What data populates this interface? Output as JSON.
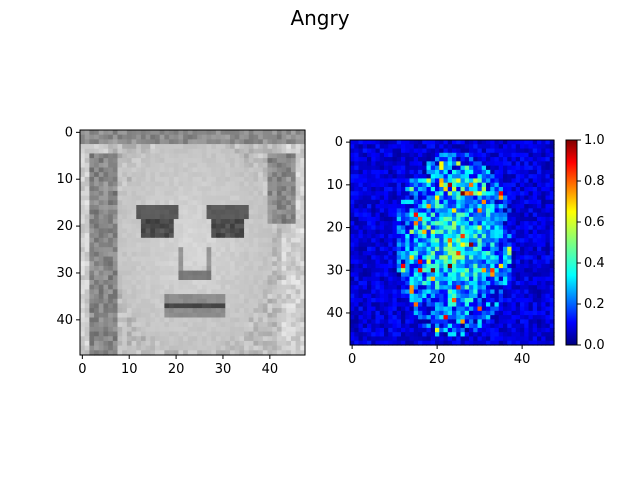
{
  "figure": {
    "title": "Angry",
    "background": "#ffffff"
  },
  "chart_data": [
    {
      "type": "heatmap",
      "name": "face-image",
      "description_visible": "",
      "colormap": "gray",
      "shape": [
        48,
        48
      ],
      "xlim": [
        -0.5,
        47.5
      ],
      "ylim": [
        47.5,
        -0.5
      ],
      "xticks": [
        0,
        10,
        20,
        30,
        40
      ],
      "yticks": [
        0,
        10,
        20,
        30,
        40
      ],
      "xtick_labels": [
        "0",
        "10",
        "20",
        "30",
        "40"
      ],
      "ytick_labels": [
        "0",
        "10",
        "20",
        "30",
        "40"
      ]
    },
    {
      "type": "heatmap",
      "name": "saliency-map",
      "colormap": "jet",
      "shape": [
        48,
        48
      ],
      "xlim": [
        -0.5,
        47.5
      ],
      "ylim": [
        47.5,
        -0.5
      ],
      "xticks": [
        0,
        20,
        40
      ],
      "yticks": [
        0,
        10,
        20,
        30,
        40
      ],
      "xtick_labels": [
        "0",
        "20",
        "40"
      ],
      "ytick_labels": [
        "0",
        "10",
        "20",
        "30",
        "40"
      ],
      "colorbar": {
        "range": [
          0.0,
          1.0
        ],
        "ticks": [
          0.0,
          0.2,
          0.4,
          0.6,
          0.8,
          1.0
        ],
        "tick_labels": [
          "0.0",
          "0.2",
          "0.4",
          "0.6",
          "0.8",
          "1.0"
        ]
      }
    }
  ]
}
